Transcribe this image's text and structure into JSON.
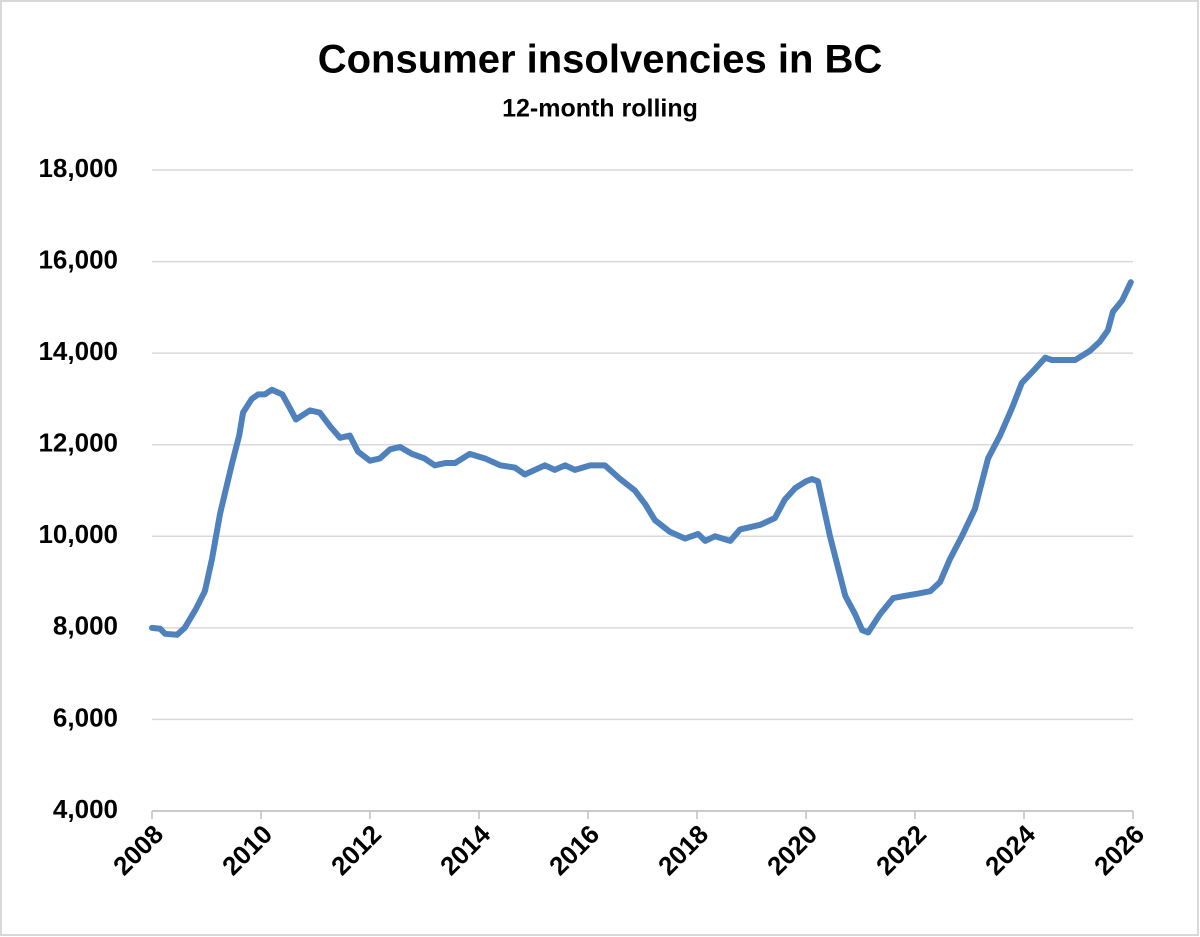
{
  "chart_data": {
    "type": "line",
    "title": "Consumer insolvencies in BC",
    "subtitle": "12-month rolling",
    "x": [
      2008.0,
      2008.15,
      2008.24,
      2008.46,
      2008.6,
      2008.8,
      2008.97,
      2009.1,
      2009.25,
      2009.47,
      2009.6,
      2009.67,
      2009.83,
      2009.95,
      2010.07,
      2010.2,
      2010.39,
      2010.53,
      2010.64,
      2010.9,
      2011.08,
      2011.27,
      2011.45,
      2011.63,
      2011.78,
      2012.0,
      2012.18,
      2012.37,
      2012.55,
      2012.77,
      2013.0,
      2013.19,
      2013.38,
      2013.56,
      2013.83,
      2014.11,
      2014.39,
      2014.66,
      2014.84,
      2015.21,
      2015.39,
      2015.58,
      2015.76,
      2016.04,
      2016.31,
      2016.59,
      2016.86,
      2017.05,
      2017.23,
      2017.5,
      2017.78,
      2018.02,
      2018.15,
      2018.33,
      2018.61,
      2018.79,
      2019.16,
      2019.43,
      2019.61,
      2019.8,
      2020.0,
      2020.11,
      2020.22,
      2020.44,
      2020.72,
      2020.9,
      2021.03,
      2021.14,
      2021.36,
      2021.6,
      2021.82,
      2022.06,
      2022.28,
      2022.46,
      2022.64,
      2022.86,
      2023.1,
      2023.34,
      2023.56,
      2023.78,
      2023.96,
      2024.2,
      2024.39,
      2024.51,
      2024.94,
      2025.21,
      2025.39,
      2025.54,
      2025.63,
      2025.8,
      2025.96
    ],
    "series": [
      {
        "name": "Consumer insolvencies",
        "color": "#4f81bd",
        "values": [
          8000,
          7980,
          7870,
          7850,
          8000,
          8400,
          8800,
          9500,
          10500,
          11600,
          12200,
          12700,
          13000,
          13100,
          13100,
          13200,
          13100,
          12800,
          12550,
          12750,
          12700,
          12400,
          12150,
          12200,
          11850,
          11650,
          11700,
          11900,
          11950,
          11800,
          11700,
          11550,
          11600,
          11600,
          11800,
          11700,
          11550,
          11500,
          11350,
          11550,
          11450,
          11550,
          11450,
          11550,
          11550,
          11250,
          11000,
          10700,
          10350,
          10100,
          9950,
          10050,
          9900,
          10000,
          9900,
          10150,
          10250,
          10400,
          10800,
          11050,
          11200,
          11250,
          11200,
          10000,
          8700,
          8300,
          7950,
          7900,
          8300,
          8650,
          8700,
          8750,
          8800,
          9000,
          9500,
          10000,
          10600,
          11700,
          12200,
          12800,
          13350,
          13650,
          13900,
          13850,
          13850,
          14050,
          14250,
          14500,
          14900,
          15150,
          15550
        ]
      }
    ],
    "xlim": [
      2008,
      2026
    ],
    "xticks": [
      2008,
      2010,
      2012,
      2014,
      2016,
      2018,
      2020,
      2022,
      2024,
      2026
    ],
    "ylim": [
      4000,
      18000
    ],
    "yticks": [
      {
        "value": 4000,
        "label": "4,000"
      },
      {
        "value": 6000,
        "label": "6,000"
      },
      {
        "value": 8000,
        "label": "8,000"
      },
      {
        "value": 10000,
        "label": "10,000"
      },
      {
        "value": 12000,
        "label": "12,000"
      },
      {
        "value": 14000,
        "label": "14,000"
      },
      {
        "value": 16000,
        "label": "16,000"
      },
      {
        "value": 18000,
        "label": "18,000"
      }
    ],
    "grid": true
  }
}
